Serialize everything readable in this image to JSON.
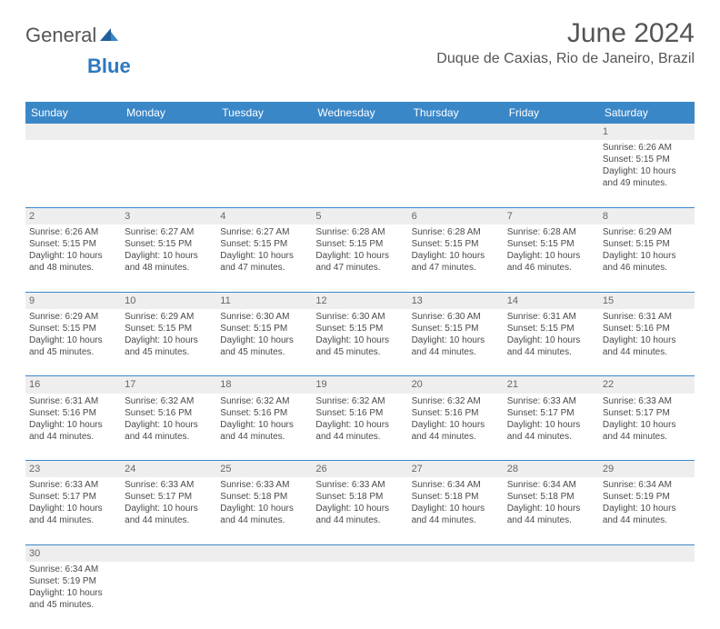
{
  "brand": {
    "part1": "General",
    "part2": "Blue"
  },
  "title": "June 2024",
  "location": "Duque de Caxias, Rio de Janeiro, Brazil",
  "colors": {
    "header_bg": "#3a87c8",
    "header_text": "#ffffff",
    "daynum_bg": "#eeeeee",
    "row_divider": "#3a87c8",
    "brand_blue": "#2d78bf",
    "text": "#4a4a4a"
  },
  "day_headers": [
    "Sunday",
    "Monday",
    "Tuesday",
    "Wednesday",
    "Thursday",
    "Friday",
    "Saturday"
  ],
  "weeks": [
    {
      "nums": [
        "",
        "",
        "",
        "",
        "",
        "",
        "1"
      ],
      "cells": [
        null,
        null,
        null,
        null,
        null,
        null,
        {
          "sunrise": "6:26 AM",
          "sunset": "5:15 PM",
          "daylight": "10 hours and 49 minutes."
        }
      ]
    },
    {
      "nums": [
        "2",
        "3",
        "4",
        "5",
        "6",
        "7",
        "8"
      ],
      "cells": [
        {
          "sunrise": "6:26 AM",
          "sunset": "5:15 PM",
          "daylight": "10 hours and 48 minutes."
        },
        {
          "sunrise": "6:27 AM",
          "sunset": "5:15 PM",
          "daylight": "10 hours and 48 minutes."
        },
        {
          "sunrise": "6:27 AM",
          "sunset": "5:15 PM",
          "daylight": "10 hours and 47 minutes."
        },
        {
          "sunrise": "6:28 AM",
          "sunset": "5:15 PM",
          "daylight": "10 hours and 47 minutes."
        },
        {
          "sunrise": "6:28 AM",
          "sunset": "5:15 PM",
          "daylight": "10 hours and 47 minutes."
        },
        {
          "sunrise": "6:28 AM",
          "sunset": "5:15 PM",
          "daylight": "10 hours and 46 minutes."
        },
        {
          "sunrise": "6:29 AM",
          "sunset": "5:15 PM",
          "daylight": "10 hours and 46 minutes."
        }
      ]
    },
    {
      "nums": [
        "9",
        "10",
        "11",
        "12",
        "13",
        "14",
        "15"
      ],
      "cells": [
        {
          "sunrise": "6:29 AM",
          "sunset": "5:15 PM",
          "daylight": "10 hours and 45 minutes."
        },
        {
          "sunrise": "6:29 AM",
          "sunset": "5:15 PM",
          "daylight": "10 hours and 45 minutes."
        },
        {
          "sunrise": "6:30 AM",
          "sunset": "5:15 PM",
          "daylight": "10 hours and 45 minutes."
        },
        {
          "sunrise": "6:30 AM",
          "sunset": "5:15 PM",
          "daylight": "10 hours and 45 minutes."
        },
        {
          "sunrise": "6:30 AM",
          "sunset": "5:15 PM",
          "daylight": "10 hours and 44 minutes."
        },
        {
          "sunrise": "6:31 AM",
          "sunset": "5:15 PM",
          "daylight": "10 hours and 44 minutes."
        },
        {
          "sunrise": "6:31 AM",
          "sunset": "5:16 PM",
          "daylight": "10 hours and 44 minutes."
        }
      ]
    },
    {
      "nums": [
        "16",
        "17",
        "18",
        "19",
        "20",
        "21",
        "22"
      ],
      "cells": [
        {
          "sunrise": "6:31 AM",
          "sunset": "5:16 PM",
          "daylight": "10 hours and 44 minutes."
        },
        {
          "sunrise": "6:32 AM",
          "sunset": "5:16 PM",
          "daylight": "10 hours and 44 minutes."
        },
        {
          "sunrise": "6:32 AM",
          "sunset": "5:16 PM",
          "daylight": "10 hours and 44 minutes."
        },
        {
          "sunrise": "6:32 AM",
          "sunset": "5:16 PM",
          "daylight": "10 hours and 44 minutes."
        },
        {
          "sunrise": "6:32 AM",
          "sunset": "5:16 PM",
          "daylight": "10 hours and 44 minutes."
        },
        {
          "sunrise": "6:33 AM",
          "sunset": "5:17 PM",
          "daylight": "10 hours and 44 minutes."
        },
        {
          "sunrise": "6:33 AM",
          "sunset": "5:17 PM",
          "daylight": "10 hours and 44 minutes."
        }
      ]
    },
    {
      "nums": [
        "23",
        "24",
        "25",
        "26",
        "27",
        "28",
        "29"
      ],
      "cells": [
        {
          "sunrise": "6:33 AM",
          "sunset": "5:17 PM",
          "daylight": "10 hours and 44 minutes."
        },
        {
          "sunrise": "6:33 AM",
          "sunset": "5:17 PM",
          "daylight": "10 hours and 44 minutes."
        },
        {
          "sunrise": "6:33 AM",
          "sunset": "5:18 PM",
          "daylight": "10 hours and 44 minutes."
        },
        {
          "sunrise": "6:33 AM",
          "sunset": "5:18 PM",
          "daylight": "10 hours and 44 minutes."
        },
        {
          "sunrise": "6:34 AM",
          "sunset": "5:18 PM",
          "daylight": "10 hours and 44 minutes."
        },
        {
          "sunrise": "6:34 AM",
          "sunset": "5:18 PM",
          "daylight": "10 hours and 44 minutes."
        },
        {
          "sunrise": "6:34 AM",
          "sunset": "5:19 PM",
          "daylight": "10 hours and 44 minutes."
        }
      ]
    },
    {
      "nums": [
        "30",
        "",
        "",
        "",
        "",
        "",
        ""
      ],
      "cells": [
        {
          "sunrise": "6:34 AM",
          "sunset": "5:19 PM",
          "daylight": "10 hours and 45 minutes."
        },
        null,
        null,
        null,
        null,
        null,
        null
      ],
      "last": true
    }
  ],
  "labels": {
    "sunrise": "Sunrise:",
    "sunset": "Sunset:",
    "daylight": "Daylight:"
  }
}
